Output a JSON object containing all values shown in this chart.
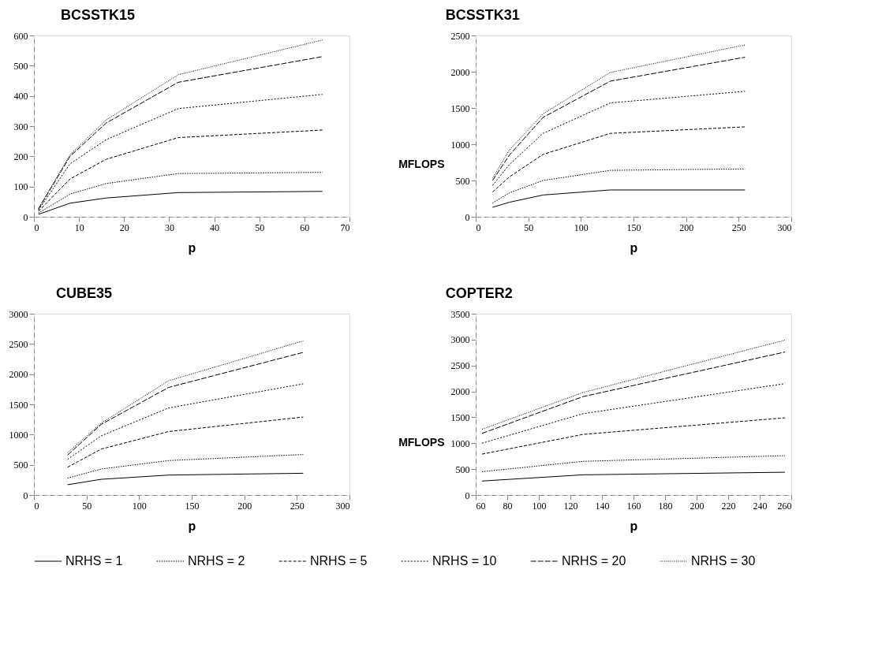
{
  "chart_data": [
    {
      "type": "line",
      "title": "BCSSTK15",
      "xlabel": "p",
      "xlim": [
        0,
        70
      ],
      "xticks": [
        0,
        10,
        20,
        30,
        40,
        50,
        60,
        70
      ],
      "ylim": [
        0,
        600
      ],
      "yticks": [
        0,
        100,
        200,
        300,
        400,
        500,
        600
      ],
      "grid": false,
      "legend": "bottom",
      "marker": "none",
      "x": [
        1,
        8,
        16,
        32,
        64
      ],
      "series": [
        {
          "name": "NRHS = 1",
          "color": "#000000",
          "line_style": "solid",
          "values": [
            8,
            45,
            62,
            80,
            84
          ]
        },
        {
          "name": "NRHS = 2",
          "color": "#000000",
          "line_style": "dotted",
          "values": [
            12,
            75,
            110,
            143,
            147
          ]
        },
        {
          "name": "NRHS = 5",
          "color": "#000000",
          "line_style": "dashed",
          "values": [
            18,
            125,
            190,
            262,
            287
          ]
        },
        {
          "name": "NRHS = 10",
          "color": "#000000",
          "line_style": "dotted",
          "values": [
            22,
            175,
            255,
            358,
            405
          ]
        },
        {
          "name": "NRHS = 20",
          "color": "#000000",
          "line_style": "dashed",
          "values": [
            25,
            200,
            310,
            445,
            530
          ]
        },
        {
          "name": "NRHS = 30",
          "color": "#000000",
          "line_style": "dotted",
          "values": [
            28,
            205,
            320,
            470,
            585
          ]
        }
      ]
    },
    {
      "type": "line",
      "title": "BCSSTK31",
      "xlabel": "p",
      "ylabel": "MFLOPS",
      "xlim": [
        0,
        300
      ],
      "xticks": [
        0,
        50,
        100,
        150,
        200,
        250,
        300
      ],
      "ylim": [
        0,
        2500
      ],
      "yticks": [
        0,
        500,
        1000,
        1500,
        2000,
        2500
      ],
      "grid": false,
      "legend": "bottom",
      "marker": "none",
      "x": [
        16,
        32,
        64,
        128,
        256
      ],
      "series": [
        {
          "name": "NRHS = 1",
          "color": "#000000",
          "line_style": "solid",
          "values": [
            130,
            200,
            300,
            370,
            370
          ]
        },
        {
          "name": "NRHS = 2",
          "color": "#000000",
          "line_style": "dotted",
          "values": [
            190,
            330,
            500,
            640,
            660
          ]
        },
        {
          "name": "NRHS = 5",
          "color": "#000000",
          "line_style": "dashed",
          "values": [
            340,
            550,
            860,
            1150,
            1240
          ]
        },
        {
          "name": "NRHS = 10",
          "color": "#000000",
          "line_style": "dotted",
          "values": [
            430,
            720,
            1150,
            1570,
            1730
          ]
        },
        {
          "name": "NRHS = 20",
          "color": "#000000",
          "line_style": "dashed",
          "values": [
            500,
            850,
            1370,
            1870,
            2200
          ]
        },
        {
          "name": "NRHS = 30",
          "color": "#000000",
          "line_style": "dotted",
          "values": [
            530,
            920,
            1420,
            1990,
            2370
          ]
        }
      ]
    },
    {
      "type": "line",
      "title": "CUBE35",
      "xlabel": "p",
      "xlim": [
        0,
        300
      ],
      "xticks": [
        0,
        50,
        100,
        150,
        200,
        250,
        300
      ],
      "ylim": [
        0,
        3000
      ],
      "yticks": [
        0,
        500,
        1000,
        1500,
        2000,
        2500,
        3000
      ],
      "grid": false,
      "legend": "bottom",
      "marker": "none",
      "x": [
        32,
        64,
        128,
        256
      ],
      "series": [
        {
          "name": "NRHS = 1",
          "color": "#000000",
          "line_style": "solid",
          "values": [
            170,
            260,
            330,
            360
          ]
        },
        {
          "name": "NRHS = 2",
          "color": "#000000",
          "line_style": "dotted",
          "values": [
            280,
            430,
            570,
            670
          ]
        },
        {
          "name": "NRHS = 5",
          "color": "#000000",
          "line_style": "dashed",
          "values": [
            460,
            760,
            1050,
            1290
          ]
        },
        {
          "name": "NRHS = 10",
          "color": "#000000",
          "line_style": "dotted",
          "values": [
            590,
            980,
            1440,
            1840
          ]
        },
        {
          "name": "NRHS = 20",
          "color": "#000000",
          "line_style": "dashed",
          "values": [
            660,
            1170,
            1780,
            2360
          ]
        },
        {
          "name": "NRHS = 30",
          "color": "#000000",
          "line_style": "dotted",
          "values": [
            700,
            1190,
            1890,
            2550
          ]
        }
      ]
    },
    {
      "type": "line",
      "title": "COPTER2",
      "xlabel": "p",
      "ylabel": "MFLOPS",
      "xlim": [
        60,
        260
      ],
      "xticks": [
        60,
        80,
        100,
        120,
        140,
        160,
        180,
        200,
        220,
        240,
        260
      ],
      "ylim": [
        0,
        3500
      ],
      "yticks": [
        0,
        500,
        1000,
        1500,
        2000,
        2500,
        3000,
        3500
      ],
      "grid": false,
      "legend": "bottom",
      "marker": "none",
      "x": [
        64,
        128,
        256
      ],
      "series": [
        {
          "name": "NRHS = 1",
          "color": "#000000",
          "line_style": "solid",
          "values": [
            270,
            390,
            440
          ]
        },
        {
          "name": "NRHS = 2",
          "color": "#000000",
          "line_style": "dotted",
          "values": [
            450,
            650,
            760
          ]
        },
        {
          "name": "NRHS = 5",
          "color": "#000000",
          "line_style": "dashed",
          "values": [
            790,
            1170,
            1490
          ]
        },
        {
          "name": "NRHS = 10",
          "color": "#000000",
          "line_style": "dotted",
          "values": [
            1000,
            1570,
            2150
          ]
        },
        {
          "name": "NRHS = 20",
          "color": "#000000",
          "line_style": "dashed",
          "values": [
            1190,
            1900,
            2760
          ]
        },
        {
          "name": "NRHS = 30",
          "color": "#000000",
          "line_style": "dotted",
          "values": [
            1270,
            1980,
            2990
          ]
        }
      ]
    }
  ]
}
